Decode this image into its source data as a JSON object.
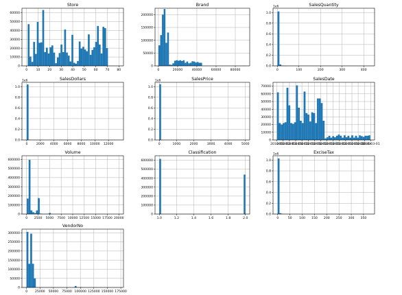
{
  "figure": {
    "colors": {
      "bar": "#1f77b4",
      "grid": "#b0b0b0",
      "axes": "#000000",
      "background": "#ffffff"
    },
    "grid": true
  },
  "chart_data": [
    {
      "type": "bar",
      "title": "Store",
      "xlim": [
        -4,
        84
      ],
      "ylim": [
        0,
        65000
      ],
      "xticks": [
        0,
        10,
        20,
        30,
        40,
        50,
        60,
        70,
        80
      ],
      "xtick_labels": [
        "0",
        "10",
        "20",
        "30",
        "40",
        "50",
        "60",
        "70",
        "80"
      ],
      "yticks": [
        0,
        10000,
        20000,
        30000,
        40000,
        50000,
        60000
      ],
      "ytick_labels": [
        "0",
        "10000",
        "20000",
        "30000",
        "40000",
        "50000",
        "60000"
      ],
      "offset_label": "",
      "bin_start": 1,
      "bin_width": 1.58,
      "values": [
        47000,
        10500,
        4500,
        27000,
        13500,
        49500,
        26000,
        26500,
        63000,
        15500,
        20500,
        14000,
        21000,
        23000,
        15000,
        3000,
        9500,
        14500,
        24000,
        15500,
        41000,
        15000,
        11500,
        5000,
        35000,
        3500,
        2500,
        5500,
        27500,
        19500,
        21500,
        18500,
        16500,
        35500,
        12500,
        18000,
        21000,
        27000,
        45000,
        24000,
        14000,
        44000,
        42500,
        20000
      ]
    },
    {
      "type": "bar",
      "title": "Brand",
      "xlim": [
        -3500,
        95000
      ],
      "ylim": [
        0,
        225000
      ],
      "xticks": [
        0,
        20000,
        40000,
        60000,
        80000
      ],
      "xtick_labels": [
        "0",
        "20000",
        "40000",
        "60000",
        "80000"
      ],
      "yticks": [
        0,
        50000,
        100000,
        150000,
        200000
      ],
      "ytick_labels": [
        "0",
        "50000",
        "100000",
        "150000",
        "200000"
      ],
      "offset_label": "",
      "bin_start": 58,
      "bin_width": 1815,
      "values": [
        80000,
        120000,
        200000,
        222000,
        90000,
        130000,
        5000,
        4000,
        10000,
        20000,
        22000,
        20000,
        22000,
        19000,
        22000,
        12000,
        17000,
        10000,
        12000,
        18000,
        17000,
        13000,
        15000,
        12000,
        12000,
        0,
        0,
        0,
        0,
        0,
        0,
        0,
        0,
        0,
        0,
        0,
        0,
        0,
        0,
        0,
        0,
        0,
        0,
        0,
        0,
        0,
        0,
        0,
        0,
        500
      ]
    },
    {
      "type": "bar",
      "title": "SalesQuantity",
      "xlim": [
        -20,
        450
      ],
      "ylim": [
        0,
        1.08
      ],
      "xticks": [
        0,
        100,
        200,
        300,
        400
      ],
      "xtick_labels": [
        "0",
        "100",
        "200",
        "300",
        "400"
      ],
      "yticks": [
        0,
        0.2,
        0.4,
        0.6,
        0.8,
        1.0
      ],
      "ytick_labels": [
        "0.0",
        "0.2",
        "0.4",
        "0.6",
        "0.8",
        "1.0"
      ],
      "offset_label": "1e6",
      "bin_start": 1,
      "bin_width": 8.6,
      "values": [
        1.02,
        0.025,
        0.006,
        0.002,
        0.001
      ]
    },
    {
      "type": "bar",
      "title": "SalesDollars",
      "xlim": [
        -700,
        14200
      ],
      "ylim": [
        0,
        1.08
      ],
      "xticks": [
        0,
        2000,
        4000,
        6000,
        8000,
        10000,
        12000
      ],
      "xtick_labels": [
        "0",
        "2000",
        "4000",
        "6000",
        "8000",
        "10000",
        "12000"
      ],
      "yticks": [
        0,
        0.2,
        0.4,
        0.6,
        0.8,
        1.0
      ],
      "ytick_labels": [
        "0.0",
        "0.2",
        "0.4",
        "0.6",
        "0.8",
        "1.0"
      ],
      "offset_label": "1e6",
      "bin_start": 0,
      "bin_width": 270,
      "values": [
        1.04,
        0.003
      ]
    },
    {
      "type": "bar",
      "title": "SalesPrice",
      "xlim": [
        -250,
        5250
      ],
      "ylim": [
        0,
        1.08
      ],
      "xticks": [
        0,
        1000,
        2000,
        3000,
        4000,
        5000
      ],
      "xtick_labels": [
        "0",
        "1000",
        "2000",
        "3000",
        "4000",
        "5000"
      ],
      "yticks": [
        0,
        0.2,
        0.4,
        0.6,
        0.8,
        1.0
      ],
      "ytick_labels": [
        "0.0",
        "0.2",
        "0.4",
        "0.6",
        "0.8",
        "1.0"
      ],
      "offset_label": "1e6",
      "bin_start": 0,
      "bin_width": 100,
      "values": [
        1.045,
        0.002
      ]
    },
    {
      "type": "bar",
      "title": "SalesDate",
      "xlim": [
        -2.5,
        62.5
      ],
      "ylim": [
        0,
        75000
      ],
      "xticks": [
        0,
        4,
        8,
        12,
        16,
        20,
        24,
        28,
        32,
        36,
        40,
        44,
        48,
        52,
        56,
        60
      ],
      "xtick_labels": [
        "2016-01",
        "2016-02",
        "2016-03",
        "2016-04",
        "2016-05",
        "2016-06",
        "2016-07",
        "2016-08",
        "2016-09",
        "2016-10",
        "2016-11",
        "2016-12",
        "2017-01",
        "2017-02",
        "2017-03",
        "2017-04"
      ],
      "xtick_display": [
        "2016-01",
        "2016-02",
        "2016-03",
        "2016-01",
        "2016-02",
        "2016-03",
        "2016-01",
        "2016-02",
        "2016-03",
        "2016-01",
        "2016-02",
        "2016-03",
        "2016-01",
        "2016-02",
        "2016-03",
        "2016-03-01"
      ],
      "yticks": [
        0,
        10000,
        20000,
        30000,
        40000,
        50000,
        60000,
        70000
      ],
      "ytick_labels": [
        "0",
        "10000",
        "20000",
        "30000",
        "40000",
        "50000",
        "60000",
        "70000"
      ],
      "offset_label": "",
      "bin_start": 0,
      "bin_width": 1.22,
      "values": [
        62000,
        22000,
        20000,
        22000,
        23000,
        68000,
        45000,
        22000,
        21000,
        23000,
        71000,
        42000,
        25000,
        22000,
        63000,
        35000,
        33000,
        24000,
        36000,
        35000,
        22000,
        54000,
        54000,
        48000,
        25000,
        2000,
        3500,
        5500,
        3000,
        5000,
        3500,
        5500,
        7000,
        5500,
        3000,
        6000,
        3500,
        5500,
        3000,
        6000,
        3000,
        5500,
        3000,
        6000,
        5000,
        4000,
        5500,
        5500,
        6000
      ]
    },
    {
      "type": "bar",
      "title": "Volume",
      "xlim": [
        -1000,
        21000
      ],
      "ylim": [
        0,
        640000
      ],
      "xticks": [
        0,
        2500,
        5000,
        7500,
        10000,
        12500,
        15000,
        17500,
        20000
      ],
      "xtick_labels": [
        "0",
        "2500",
        "5000",
        "7500",
        "10000",
        "12500",
        "15000",
        "17500",
        "20000"
      ],
      "yticks": [
        0,
        100000,
        200000,
        300000,
        400000,
        500000,
        600000
      ],
      "ytick_labels": [
        "0",
        "100000",
        "200000",
        "300000",
        "400000",
        "500000",
        "600000"
      ],
      "offset_label": "",
      "bin_start": 50,
      "bin_width": 400,
      "values": [
        170000,
        595000,
        40000,
        20000,
        10000,
        40000,
        175000,
        5000,
        2000,
        1000,
        2000,
        3000,
        12000
      ]
    },
    {
      "type": "bar",
      "title": "Classification",
      "xlim": [
        0.95,
        2.05
      ],
      "ylim": [
        0,
        650000
      ],
      "xticks": [
        1.0,
        1.2,
        1.4,
        1.6,
        1.8,
        2.0
      ],
      "xtick_labels": [
        "1.0",
        "1.2",
        "1.4",
        "1.6",
        "1.8",
        "2.0"
      ],
      "yticks": [
        0,
        100000,
        200000,
        300000,
        400000,
        500000,
        600000
      ],
      "ytick_labels": [
        "0",
        "100000",
        "200000",
        "300000",
        "400000",
        "500000",
        "600000"
      ],
      "offset_label": "",
      "bars": [
        {
          "x": 1.0,
          "width": 0.02,
          "value": 615000
        },
        {
          "x": 1.98,
          "width": 0.02,
          "value": 440000
        }
      ]
    },
    {
      "type": "bar",
      "title": "ExciseTax",
      "xlim": [
        -19,
        395
      ],
      "ylim": [
        0,
        1.08
      ],
      "xticks": [
        0,
        50,
        100,
        150,
        200,
        250,
        300,
        350
      ],
      "xtick_labels": [
        "0",
        "50",
        "100",
        "150",
        "200",
        "250",
        "300",
        "350"
      ],
      "yticks": [
        0,
        0.2,
        0.4,
        0.6,
        0.8,
        1.0
      ],
      "ytick_labels": [
        "0.0",
        "0.2",
        "0.4",
        "0.6",
        "0.8",
        "1.0"
      ],
      "offset_label": "1e6",
      "bin_start": 0,
      "bin_width": 7.5,
      "values": [
        1.03,
        0.015,
        0.004
      ]
    },
    {
      "type": "bar",
      "title": "VendorNo",
      "xlim": [
        -8500,
        180000
      ],
      "ylim": [
        0,
        320000
      ],
      "xticks": [
        0,
        25000,
        50000,
        75000,
        100000,
        125000,
        150000,
        175000
      ],
      "xtick_labels": [
        "0",
        "25000",
        "50000",
        "75000",
        "100000",
        "125000",
        "150000",
        "175000"
      ],
      "yticks": [
        0,
        50000,
        100000,
        150000,
        200000,
        250000,
        300000
      ],
      "ytick_labels": [
        "0",
        "50000",
        "100000",
        "150000",
        "200000",
        "250000",
        "300000"
      ],
      "offset_label": "",
      "bin_start": 2,
      "bin_width": 3440,
      "values": [
        305000,
        130000,
        295000,
        130000,
        50000,
        0,
        0,
        0,
        0,
        0,
        0,
        0,
        0,
        0,
        0,
        0,
        0,
        0,
        0,
        0,
        0,
        0,
        0,
        0,
        0,
        0,
        8000,
        0,
        0,
        2000
      ]
    }
  ]
}
